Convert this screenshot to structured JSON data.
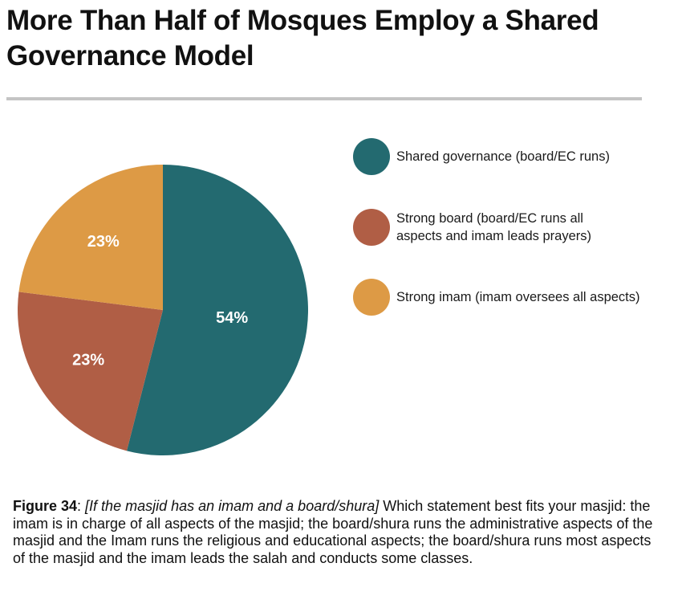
{
  "title": "More Than Half of Mosques Employ a Shared Governance Model",
  "chart_data": {
    "type": "pie",
    "title": "More Than Half of Mosques Employ a Shared Governance Model",
    "slices": [
      {
        "label": "Shared governance (board/EC runs)",
        "value": 54,
        "display": "54%",
        "color": "#236a70"
      },
      {
        "label": "Strong board (board/EC runs all aspects and imam leads prayers)",
        "value": 23,
        "display": "23%",
        "color": "#b05e45"
      },
      {
        "label": "Strong imam (imam oversees all aspects)",
        "value": 23,
        "display": "23%",
        "color": "#dd9a45"
      }
    ],
    "legend_position": "right",
    "label_color": "#ffffff"
  },
  "legend": [
    {
      "label_lines": [
        "Shared governance (board/EC runs)"
      ],
      "color": "#236a70"
    },
    {
      "label_lines": [
        "Strong board (board/EC runs all",
        "aspects and imam leads prayers)"
      ],
      "color": "#b05e45"
    },
    {
      "label_lines": [
        "Strong imam (imam oversees all aspects)"
      ],
      "color": "#dd9a45"
    }
  ],
  "caption": {
    "figure_label": "Figure 34",
    "bracket_text": "[If the masjid has an imam and a board/shura]",
    "body": " Which statement best fits your masjid: the imam is in charge of all aspects of the masjid; the board/shura runs the administrative aspects of the masjid and the Imam runs the religious and educational aspects; the board/shura runs most aspects of the masjid and the imam leads the salah and conducts some classes."
  }
}
